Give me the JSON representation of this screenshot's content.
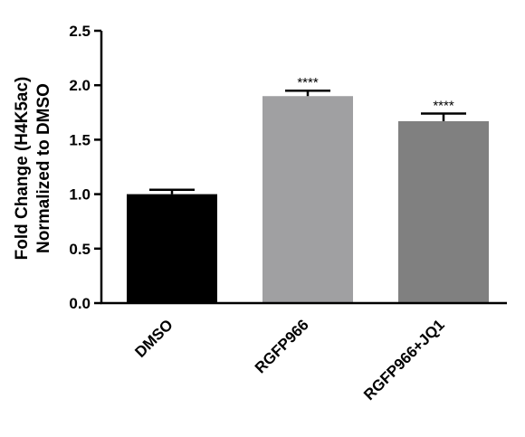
{
  "chart_data": {
    "type": "bar",
    "categories": [
      "DMSO",
      "RGFP966",
      "RGFP966+JQ1"
    ],
    "values": [
      1.0,
      1.9,
      1.67
    ],
    "errors": [
      0.04,
      0.05,
      0.07
    ],
    "significance": [
      "",
      "****",
      "****"
    ],
    "bar_colors": [
      "#000000",
      "#a0a0a2",
      "#808080"
    ],
    "ylabel_lines": [
      "Fold Change (H4K5ac)",
      "Normalized to DMSO"
    ],
    "yticks": [
      "0.0",
      "0.5",
      "1.0",
      "1.5",
      "2.0",
      "2.5"
    ],
    "ylim": [
      0,
      2.5
    ]
  }
}
